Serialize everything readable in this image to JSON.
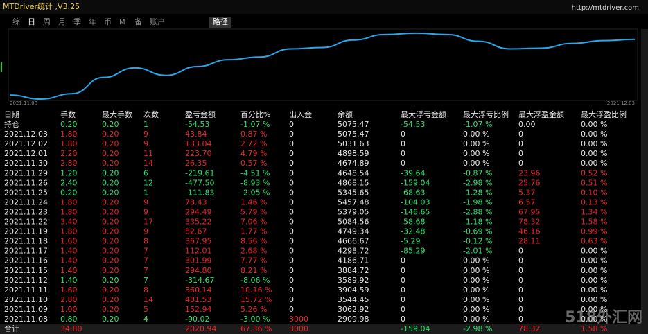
{
  "header": {
    "title": "MTDriver统计 ,V3.25",
    "url": "http://mtdriver.com"
  },
  "tabs": [
    "综",
    "日",
    "周",
    "月",
    "季",
    "年",
    "币",
    "M",
    "备",
    "账户"
  ],
  "active_tab": "路径",
  "chart_data": {
    "type": "line",
    "x": [
      "2021.11.08",
      null,
      null,
      null,
      null,
      null,
      null,
      null,
      null,
      null,
      null,
      null,
      null,
      null,
      null,
      null,
      null,
      null,
      null,
      null,
      "2021.12.03"
    ],
    "values": [
      8,
      2,
      10,
      34,
      48,
      37,
      50,
      60,
      64,
      76,
      78,
      89,
      97,
      99,
      97,
      87,
      76,
      77,
      84,
      88,
      90
    ],
    "ylim": [
      0,
      105
    ],
    "color": "#2aa6ea"
  },
  "table": {
    "columns": [
      "日期",
      "手数",
      "最大手数",
      "次数",
      "盈亏金额",
      "百分比%",
      "出入金",
      "余额",
      "最大浮亏金额",
      "最大浮亏比例",
      "最大浮盈金额",
      "最大浮盈比例"
    ],
    "rows": [
      [
        "持仓",
        "0.20",
        "0.20",
        "1",
        "-54.53",
        "-1.07 %",
        "0",
        "5075.47",
        "-54.53",
        "-1.07 %",
        "0.00",
        "0.00 %"
      ],
      [
        "2021.12.03",
        "1.80",
        "0.20",
        "9",
        "43.84",
        "0.87 %",
        "0",
        "5075.47",
        "0",
        "0.00 %",
        "0",
        "0.00 %"
      ],
      [
        "2021.12.02",
        "1.80",
        "0.20",
        "9",
        "133.04",
        "2.72 %",
        "0",
        "5031.63",
        "0",
        "0.00 %",
        "0",
        "0.00 %"
      ],
      [
        "2021.12.01",
        "2.20",
        "0.20",
        "11",
        "223.70",
        "4.79 %",
        "0",
        "4898.59",
        "0",
        "0.00 %",
        "0",
        "0.00 %"
      ],
      [
        "2021.11.30",
        "2.80",
        "0.20",
        "14",
        "26.35",
        "0.57 %",
        "0",
        "4674.89",
        "0",
        "0.00 %",
        "0",
        "0.00 %"
      ],
      [
        "2021.11.29",
        "1.20",
        "0.20",
        "6",
        "-219.61",
        "-4.51 %",
        "0",
        "4648.54",
        "-39.64",
        "-0.87 %",
        "23.96",
        "0.52 %"
      ],
      [
        "2021.11.26",
        "2.40",
        "0.20",
        "12",
        "-477.50",
        "-8.93 %",
        "0",
        "4868.15",
        "-159.04",
        "-2.98 %",
        "25.76",
        "0.51 %"
      ],
      [
        "2021.11.25",
        "0.20",
        "0.20",
        "1",
        "-111.83",
        "-2.05 %",
        "0",
        "5345.65",
        "-68.63",
        "-1.28 %",
        "5.37",
        "0.10 %"
      ],
      [
        "2021.11.24",
        "1.80",
        "0.20",
        "9",
        "78.43",
        "1.46 %",
        "0",
        "5457.48",
        "-104.03",
        "-1.98 %",
        "6.57",
        "0.13 %"
      ],
      [
        "2021.11.23",
        "1.80",
        "0.20",
        "9",
        "294.49",
        "5.79 %",
        "0",
        "5379.05",
        "-146.65",
        "-2.88 %",
        "67.95",
        "1.34 %"
      ],
      [
        "2021.11.22",
        "3.40",
        "0.20",
        "17",
        "335.22",
        "7.06 %",
        "0",
        "5084.56",
        "-58.68",
        "-1.18 %",
        "78.32",
        "1.58 %"
      ],
      [
        "2021.11.19",
        "1.80",
        "0.20",
        "9",
        "82.67",
        "1.77 %",
        "0",
        "4749.34",
        "-32.48",
        "-0.69 %",
        "46.16",
        "0.99 %"
      ],
      [
        "2021.11.18",
        "1.60",
        "0.20",
        "8",
        "367.95",
        "8.56 %",
        "0",
        "4666.67",
        "-5.29",
        "-0.12 %",
        "28.11",
        "0.63 %"
      ],
      [
        "2021.11.17",
        "1.40",
        "0.20",
        "7",
        "112.01",
        "2.68 %",
        "0",
        "4298.72",
        "-85.29",
        "-2.01 %",
        "0",
        "0.00 %"
      ],
      [
        "2021.11.16",
        "1.40",
        "0.20",
        "7",
        "301.99",
        "7.77 %",
        "0",
        "4186.71",
        "0",
        "0.00 %",
        "0",
        "0.00 %"
      ],
      [
        "2021.11.15",
        "1.40",
        "0.20",
        "7",
        "294.80",
        "8.21 %",
        "0",
        "3884.72",
        "0",
        "0.00 %",
        "0",
        "0.00 %"
      ],
      [
        "2021.11.12",
        "1.40",
        "0.20",
        "7",
        "-314.67",
        "-8.06 %",
        "0",
        "3589.92",
        "0",
        "0.00 %",
        "0",
        "0.00 %"
      ],
      [
        "2021.11.11",
        "1.60",
        "0.20",
        "8",
        "360.14",
        "10.16 %",
        "0",
        "3904.59",
        "0",
        "0.00 %",
        "0",
        "0.00 %"
      ],
      [
        "2021.11.10",
        "2.80",
        "0.20",
        "14",
        "481.53",
        "15.72 %",
        "0",
        "3544.45",
        "0",
        "0.00 %",
        "0",
        "0.00 %"
      ],
      [
        "2021.11.09",
        "1.00",
        "0.20",
        "5",
        "152.94",
        "5.26 %",
        "0",
        "3062.92",
        "0",
        "0.00 %",
        "0",
        "0.00 %"
      ],
      [
        "2021.11.08",
        "0.80",
        "0.20",
        "4",
        "-90.02",
        "-3.00 %",
        "3000",
        "2909.98",
        "0",
        "0.00 %",
        "0",
        "0.00 %"
      ],
      [
        "合计",
        "34.80",
        null,
        null,
        "2020.94",
        "67.36 %",
        "3000",
        null,
        "-159.04",
        "-2.98 %",
        "78.32",
        "1.58 %"
      ]
    ]
  },
  "watermark": "518外汇网"
}
